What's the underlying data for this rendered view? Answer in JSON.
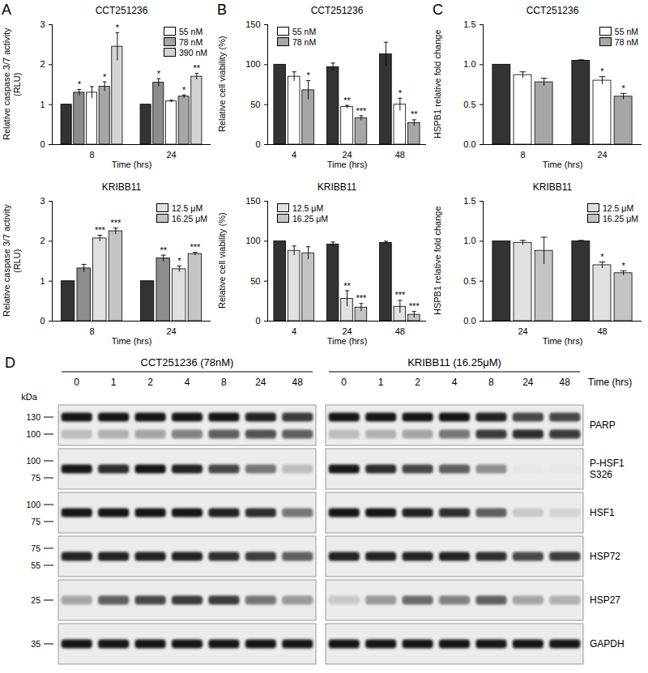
{
  "chart_data": [
    {
      "panel": "A",
      "type": "bar",
      "title": "CCT251236",
      "ylabel": "Relative caspase 3/7 activity (RLU)",
      "xlabel": "Time (hrs)",
      "categories": [
        "8",
        "24"
      ],
      "ylim": [
        0,
        3
      ],
      "yticks": [
        0,
        1,
        2,
        3
      ],
      "legend": "top-right",
      "series": [
        {
          "color": "#333333",
          "values": [
            1,
            1
          ],
          "errors": [
            0,
            0
          ],
          "significance": [
            null,
            null
          ]
        },
        {
          "color": "#8c8c8c",
          "values": [
            1.3,
            1.55
          ],
          "errors": [
            0.08,
            0.1
          ],
          "significance": [
            "*",
            "*"
          ]
        },
        {
          "name": "55 nM",
          "color": "#ffffff",
          "values": [
            1.3,
            1.08
          ],
          "errors": [
            0.15,
            0.03
          ],
          "significance": [
            null,
            null
          ]
        },
        {
          "name": "78 nM",
          "color": "#a6a6a6",
          "values": [
            1.45,
            1.2
          ],
          "errors": [
            0.12,
            0.04
          ],
          "significance": [
            "*",
            "*"
          ]
        },
        {
          "name": "390 nM",
          "color": "#d4d4d4",
          "values": [
            2.45,
            1.7
          ],
          "errors": [
            0.35,
            0.08
          ],
          "significance": [
            "*",
            "**"
          ]
        }
      ]
    },
    {
      "type": "bar",
      "title": "KRIBB11",
      "ylabel": "Relative caspase 3/7 activity (RLU)",
      "xlabel": "Time (hrs)",
      "categories": [
        "8",
        "24"
      ],
      "ylim": [
        0,
        3
      ],
      "yticks": [
        0,
        1,
        2,
        3
      ],
      "legend": "top-right",
      "series": [
        {
          "color": "#333333",
          "values": [
            1,
            1
          ],
          "errors": [
            0,
            0
          ],
          "significance": [
            null,
            null
          ]
        },
        {
          "color": "#8c8c8c",
          "values": [
            1.32,
            1.57
          ],
          "errors": [
            0.1,
            0.08
          ],
          "significance": [
            null,
            "**"
          ]
        },
        {
          "name": "12.5 μM",
          "color": "#e0e0e0",
          "values": [
            2.07,
            1.3
          ],
          "errors": [
            0.08,
            0.08
          ],
          "significance": [
            "***",
            "*"
          ]
        },
        {
          "name": "16.25 μM",
          "color": "#c4c4c4",
          "values": [
            2.25,
            1.68
          ],
          "errors": [
            0.08,
            0.04
          ],
          "significance": [
            "***",
            "***"
          ]
        }
      ]
    },
    {
      "panel": "B",
      "type": "bar",
      "title": "CCT251236",
      "ylabel": "Relative cell viability (%)",
      "xlabel": "Time (hrs)",
      "categories": [
        "4",
        "24",
        "48"
      ],
      "ylim": [
        0,
        150
      ],
      "yticks": [
        0,
        50,
        100,
        150
      ],
      "legend": "top-left",
      "series": [
        {
          "color": "#333333",
          "values": [
            100,
            97,
            113
          ],
          "errors": [
            0,
            5,
            15
          ],
          "significance": [
            null,
            null,
            null
          ]
        },
        {
          "name": "55 nM",
          "color": "#ffffff",
          "values": [
            85,
            47,
            50
          ],
          "errors": [
            6,
            2,
            8
          ],
          "significance": [
            null,
            "**",
            "*"
          ]
        },
        {
          "name": "78 nM",
          "color": "#a6a6a6",
          "values": [
            68,
            33,
            27
          ],
          "errors": [
            12,
            3,
            4
          ],
          "significance": [
            "*",
            "***",
            "**"
          ]
        }
      ]
    },
    {
      "type": "bar",
      "title": "KRIBB11",
      "ylabel": "Relative cell viability (%)",
      "xlabel": "Time (hrs)",
      "categories": [
        "4",
        "24",
        "48"
      ],
      "ylim": [
        0,
        150
      ],
      "yticks": [
        0,
        50,
        100,
        150
      ],
      "legend": "top-left",
      "series": [
        {
          "color": "#333333",
          "values": [
            100,
            96,
            98
          ],
          "errors": [
            0,
            3,
            2
          ],
          "significance": [
            null,
            null,
            null
          ]
        },
        {
          "name": "12.5 μM",
          "color": "#e0e0e0",
          "values": [
            88,
            28,
            18
          ],
          "errors": [
            6,
            10,
            8
          ],
          "significance": [
            null,
            "**",
            "***"
          ]
        },
        {
          "name": "16.25 μM",
          "color": "#c4c4c4",
          "values": [
            85,
            17,
            8
          ],
          "errors": [
            8,
            5,
            4
          ],
          "significance": [
            null,
            "***",
            "***"
          ]
        }
      ]
    },
    {
      "panel": "C",
      "type": "bar",
      "title": "CCT251236",
      "ylabel": "HSPB1 relative fold change",
      "xlabel": "Time (hrs)",
      "categories": [
        "8",
        "24"
      ],
      "ylim": [
        0,
        1.5
      ],
      "yticks": [
        {
          "value": 0,
          "label": "0.0"
        },
        0.5,
        {
          "value": 1,
          "label": "1.0"
        },
        1.5
      ],
      "legend": "top-right",
      "series": [
        {
          "color": "#333333",
          "values": [
            1,
            1.05
          ],
          "errors": [
            0,
            0.01
          ],
          "significance": [
            null,
            null
          ]
        },
        {
          "name": "55 nM",
          "color": "#ffffff",
          "values": [
            0.87,
            0.8
          ],
          "errors": [
            0.04,
            0.05
          ],
          "significance": [
            null,
            "*"
          ]
        },
        {
          "name": "78 nM",
          "color": "#a6a6a6",
          "values": [
            0.78,
            0.6
          ],
          "errors": [
            0.05,
            0.04
          ],
          "significance": [
            null,
            "*"
          ]
        }
      ]
    },
    {
      "type": "bar",
      "title": "KRIBB11",
      "ylabel": "HSPB1 relative fold change",
      "xlabel": "Time (hrs)",
      "categories": [
        "24",
        "48"
      ],
      "ylim": [
        0,
        1.5
      ],
      "yticks": [
        {
          "value": 0,
          "label": "0.0"
        },
        0.5,
        {
          "value": 1,
          "label": "1.0"
        },
        1.5
      ],
      "legend": "top-right",
      "series": [
        {
          "color": "#333333",
          "values": [
            1,
            1
          ],
          "errors": [
            0,
            0.01
          ],
          "significance": [
            null,
            null
          ]
        },
        {
          "name": "12.5 μM",
          "color": "#e0e0e0",
          "values": [
            0.98,
            0.7
          ],
          "errors": [
            0.03,
            0.04
          ],
          "significance": [
            null,
            "*"
          ]
        },
        {
          "name": "16.25 μM",
          "color": "#c4c4c4",
          "values": [
            0.88,
            0.6
          ],
          "errors": [
            0.17,
            0.03
          ],
          "significance": [
            null,
            "*"
          ]
        }
      ]
    }
  ],
  "blot": {
    "panel": "D",
    "ylabel": "kDa",
    "xlabel": "Time (hrs)",
    "groups": [
      "CCT251236 (78nM)",
      "KRIBB11 (16.25μM)"
    ],
    "times": [
      0,
      1,
      2,
      4,
      8,
      24,
      48
    ],
    "rows": [
      {
        "label": "PARP",
        "markers": [
          130,
          100
        ],
        "bands": [
          [
            [
              0.9,
              0.9,
              0.9,
              0.9,
              0.9,
              0.85,
              0.75
            ],
            [
              0.9,
              0.9,
              0.9,
              0.9,
              0.85,
              0.7,
              0.7
            ]
          ],
          [
            [
              0.2,
              0.25,
              0.3,
              0.45,
              0.6,
              0.65,
              0.6
            ],
            [
              0.2,
              0.25,
              0.3,
              0.5,
              0.75,
              0.8,
              0.75
            ]
          ]
        ]
      },
      {
        "label": "P-HSF1 S326",
        "markers": [
          100,
          75
        ],
        "bands": [
          [
            [
              0.9,
              0.8,
              0.9,
              0.85,
              0.7,
              0.5,
              0.2
            ],
            [
              0.9,
              0.8,
              0.7,
              0.6,
              0.4,
              0.02,
              0.02
            ]
          ]
        ]
      },
      {
        "label": "HSF1",
        "markers": [
          100,
          75
        ],
        "bands": [
          [
            [
              0.9,
              0.9,
              0.9,
              0.9,
              0.85,
              0.8,
              0.5
            ],
            [
              0.9,
              0.9,
              0.85,
              0.8,
              0.6,
              0.15,
              0.1
            ]
          ]
        ]
      },
      {
        "label": "HSP72",
        "markers": [
          75,
          55
        ],
        "bands": [
          [
            [
              0.85,
              0.85,
              0.85,
              0.85,
              0.8,
              0.75,
              0.6
            ],
            [
              0.85,
              0.85,
              0.85,
              0.85,
              0.8,
              0.7,
              0.75
            ]
          ]
        ]
      },
      {
        "label": "HSP27",
        "markers": [
          25
        ],
        "bands": [
          [
            [
              0.3,
              0.6,
              0.7,
              0.75,
              0.75,
              0.5,
              0.35
            ],
            [
              0.15,
              0.35,
              0.55,
              0.45,
              0.6,
              0.3,
              0.25
            ]
          ]
        ]
      },
      {
        "label": "GAPDH",
        "markers": [
          35
        ],
        "bands": [
          [
            [
              0.9,
              0.9,
              0.9,
              0.9,
              0.9,
              0.9,
              0.9
            ],
            [
              0.9,
              0.9,
              0.9,
              0.9,
              0.9,
              0.9,
              0.9
            ]
          ]
        ]
      }
    ]
  }
}
